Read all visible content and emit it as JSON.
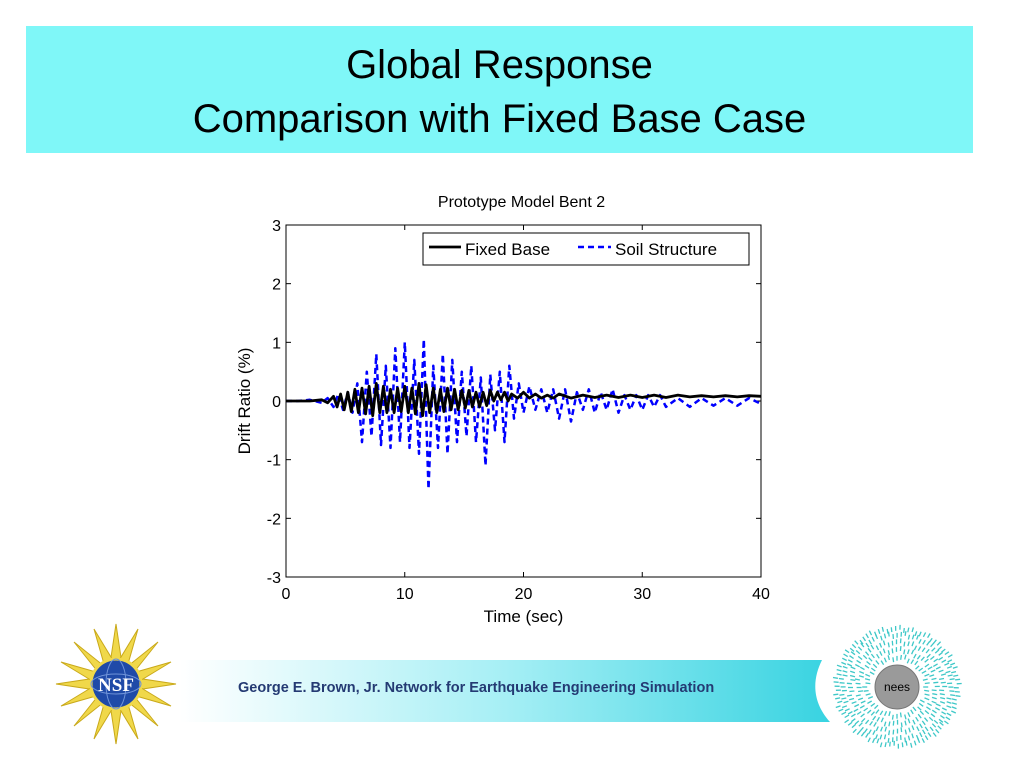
{
  "slide": {
    "title_line1": "Global Response",
    "title_line2": "Comparison with Fixed Base Case",
    "title_band_color": "#7ff7f8",
    "footer_text": "George E. Brown, Jr. Network for Earthquake Engineering Simulation",
    "footer_text_color": "#243a73",
    "nsf_logo_text": "NSF",
    "nees_logo_text": "nees"
  },
  "chart_data": {
    "type": "line",
    "title": "Prototype Model Bent 2",
    "xlabel": "Time (sec)",
    "ylabel": "Drift Ratio (%)",
    "xlim": [
      0,
      40
    ],
    "ylim": [
      -3,
      3
    ],
    "xticks": [
      0,
      10,
      20,
      30,
      40
    ],
    "yticks": [
      -3,
      -2,
      -1,
      0,
      1,
      2,
      3
    ],
    "grid": false,
    "legend_position": "top-right",
    "series": [
      {
        "name": "Fixed Base",
        "color": "#000000",
        "style": "solid",
        "x": [
          0,
          1,
          2,
          3,
          3.5,
          4,
          4.3,
          4.6,
          4.9,
          5.2,
          5.5,
          5.8,
          6.1,
          6.4,
          6.7,
          7.0,
          7.3,
          7.6,
          7.9,
          8.2,
          8.5,
          8.8,
          9.1,
          9.4,
          9.7,
          10.0,
          10.3,
          10.6,
          10.9,
          11.2,
          11.5,
          11.8,
          12.1,
          12.4,
          12.7,
          13.0,
          13.3,
          13.6,
          13.9,
          14.2,
          14.5,
          14.8,
          15.1,
          15.4,
          15.7,
          16.0,
          16.3,
          16.6,
          16.9,
          17.2,
          17.5,
          17.8,
          18.1,
          18.4,
          18.7,
          19.0,
          19.5,
          20.0,
          20.5,
          21.0,
          21.5,
          22.0,
          22.5,
          23,
          24,
          25,
          26,
          27,
          28,
          29,
          30,
          31,
          32,
          33,
          34,
          35,
          36,
          37,
          38,
          39,
          40
        ],
        "y": [
          0,
          0,
          0,
          0.02,
          -0.03,
          0.08,
          -0.1,
          0.12,
          -0.15,
          0.15,
          -0.18,
          0.2,
          -0.2,
          0.22,
          -0.22,
          0.25,
          -0.25,
          0.3,
          -0.2,
          0.25,
          -0.2,
          0.2,
          -0.2,
          0.22,
          -0.18,
          0.25,
          -0.2,
          0.22,
          -0.22,
          0.3,
          -0.25,
          0.28,
          -0.2,
          0.22,
          -0.2,
          0.2,
          -0.18,
          0.22,
          -0.15,
          0.2,
          -0.15,
          0.18,
          -0.12,
          0.18,
          -0.1,
          0.15,
          -0.1,
          0.15,
          -0.08,
          0.18,
          0.0,
          0.15,
          0.02,
          0.15,
          0.0,
          0.12,
          0.05,
          0.15,
          0.05,
          0.12,
          0.05,
          0.1,
          0.05,
          0.12,
          0.05,
          0.1,
          0.06,
          0.1,
          0.06,
          0.1,
          0.06,
          0.1,
          0.06,
          0.1,
          0.07,
          0.09,
          0.07,
          0.09,
          0.07,
          0.09,
          0.08
        ]
      },
      {
        "name": "Soil Structure",
        "color": "#0000ff",
        "style": "dashed",
        "x": [
          0,
          1,
          2,
          3,
          3.5,
          4,
          4.4,
          4.8,
          5.2,
          5.6,
          6.0,
          6.4,
          6.8,
          7.2,
          7.6,
          8.0,
          8.4,
          8.8,
          9.2,
          9.6,
          10.0,
          10.4,
          10.8,
          11.2,
          11.6,
          12.0,
          12.4,
          12.8,
          13.2,
          13.6,
          14.0,
          14.4,
          14.8,
          15.2,
          15.6,
          16.0,
          16.4,
          16.8,
          17.2,
          17.6,
          18.0,
          18.4,
          18.8,
          19.2,
          19.6,
          20.0,
          20.5,
          21.0,
          21.5,
          22.0,
          22.5,
          23.0,
          23.5,
          24.0,
          24.5,
          25.0,
          25.5,
          26.0,
          26.5,
          27.0,
          27.5,
          28.0,
          28.5,
          29.0,
          29.5,
          30.0,
          30.5,
          31.0,
          31.5,
          32.0,
          33.0,
          34.0,
          35.0,
          36.0,
          37.0,
          38.0,
          39.0,
          40.0
        ],
        "y": [
          0,
          0,
          0.02,
          -0.03,
          0.05,
          -0.1,
          0.12,
          -0.15,
          0.15,
          -0.2,
          0.3,
          -0.7,
          0.5,
          -0.6,
          0.8,
          -0.75,
          0.6,
          -0.8,
          0.9,
          -0.7,
          1.0,
          -0.8,
          0.7,
          -0.9,
          1.05,
          -1.5,
          0.6,
          -0.8,
          0.8,
          -0.9,
          0.7,
          -0.7,
          0.5,
          -0.6,
          0.6,
          -0.7,
          0.4,
          -1.1,
          0.45,
          -0.5,
          0.5,
          -0.7,
          0.6,
          -0.3,
          0.3,
          -0.2,
          0.25,
          -0.15,
          0.2,
          -0.2,
          0.2,
          -0.3,
          0.2,
          -0.35,
          0.15,
          -0.15,
          0.2,
          -0.2,
          0.15,
          -0.15,
          0.2,
          -0.2,
          0.1,
          -0.15,
          0.1,
          -0.15,
          0.1,
          -0.1,
          0.1,
          -0.1,
          0.05,
          -0.1,
          0.05,
          -0.08,
          0.05,
          -0.08,
          0.05,
          -0.05
        ]
      }
    ]
  }
}
